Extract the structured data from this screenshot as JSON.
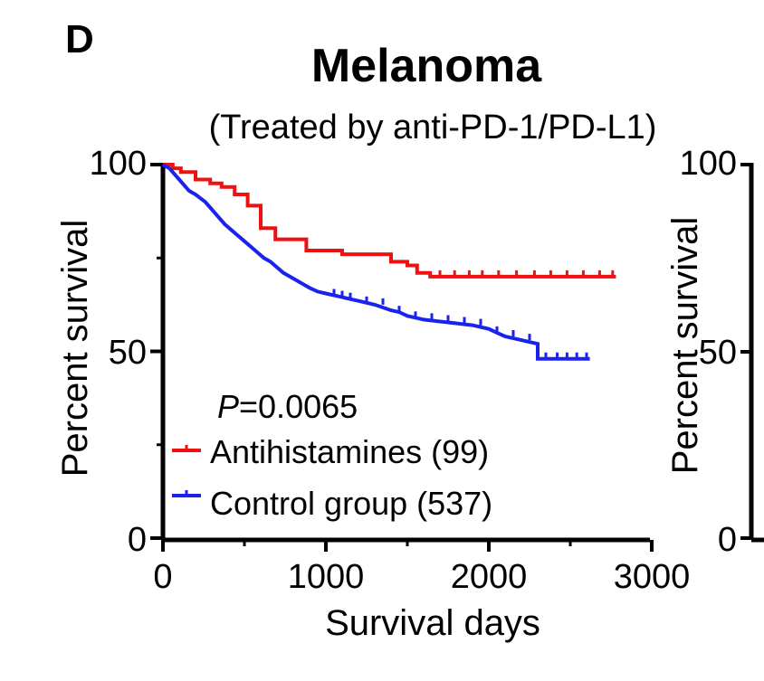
{
  "panel_letter": "D",
  "chart_data": {
    "type": "line",
    "title": "Melanoma",
    "subtitle": "(Treated by anti-PD-1/PD-L1)",
    "xlabel": "Survival days",
    "ylabel": "Percent survival",
    "xlim": [
      0,
      3000
    ],
    "ylim": [
      0,
      100
    ],
    "x_ticks": [
      "0",
      "1000",
      "2000",
      "3000"
    ],
    "y_ticks": [
      "0",
      "50",
      "100"
    ],
    "grid": false,
    "legend_position": "bottom-left",
    "annotation_p_label": "P",
    "annotation_p_value": "=0.0065",
    "series": [
      {
        "name": "Antihistamines (99)",
        "color": "#ee1111",
        "x": [
          0,
          60,
          60,
          110,
          110,
          200,
          200,
          290,
          290,
          360,
          360,
          440,
          440,
          520,
          520,
          600,
          600,
          690,
          690,
          880,
          880,
          1100,
          1100,
          1400,
          1400,
          1500,
          1500,
          1560,
          1560,
          1640,
          1640,
          2780
        ],
        "y": [
          100,
          100,
          99,
          99,
          98,
          98,
          96,
          96,
          95,
          95,
          94,
          94,
          92,
          92,
          89,
          89,
          83,
          83,
          80,
          80,
          77,
          77,
          76,
          76,
          74,
          74,
          73,
          73,
          71,
          71,
          70,
          70
        ],
        "censor_x": [
          1700,
          1790,
          1880,
          1960,
          2060,
          2170,
          2280,
          2380,
          2480,
          2580,
          2680,
          2760
        ]
      },
      {
        "name": "Control group (537)",
        "color": "#1a22ee",
        "x": [
          0,
          20,
          40,
          60,
          80,
          100,
          120,
          140,
          160,
          180,
          200,
          230,
          260,
          290,
          320,
          350,
          380,
          420,
          460,
          500,
          540,
          580,
          620,
          660,
          700,
          740,
          780,
          820,
          860,
          900,
          950,
          1000,
          1050,
          1100,
          1150,
          1200,
          1250,
          1300,
          1400,
          1450,
          1500,
          1550,
          1600,
          1700,
          1800,
          1900,
          2000,
          2050,
          2100,
          2200,
          2300,
          2300,
          2620
        ],
        "y": [
          100,
          99.5,
          99,
          98,
          97,
          96,
          95,
          94,
          93,
          92.5,
          92,
          91,
          90,
          88.5,
          87,
          85.5,
          84,
          82.5,
          81,
          79.5,
          78,
          76.5,
          75,
          74,
          72.5,
          71,
          70,
          69,
          68,
          67,
          66,
          65.5,
          65,
          64.5,
          64,
          63.5,
          63,
          62.5,
          61,
          60.5,
          59.5,
          59,
          58.5,
          58,
          57.5,
          57,
          56,
          55,
          54,
          53,
          52,
          48,
          48
        ],
        "censor_x": [
          1050,
          1100,
          1150,
          1250,
          1350,
          1450,
          1550,
          1650,
          1750,
          1850,
          1950,
          2050,
          2150,
          2250,
          2350,
          2420,
          2480,
          2540,
          2600
        ]
      }
    ]
  },
  "right_panel_partial": {
    "ylabel": "Percent survival",
    "y_ticks": [
      "0",
      "50",
      "100"
    ]
  }
}
